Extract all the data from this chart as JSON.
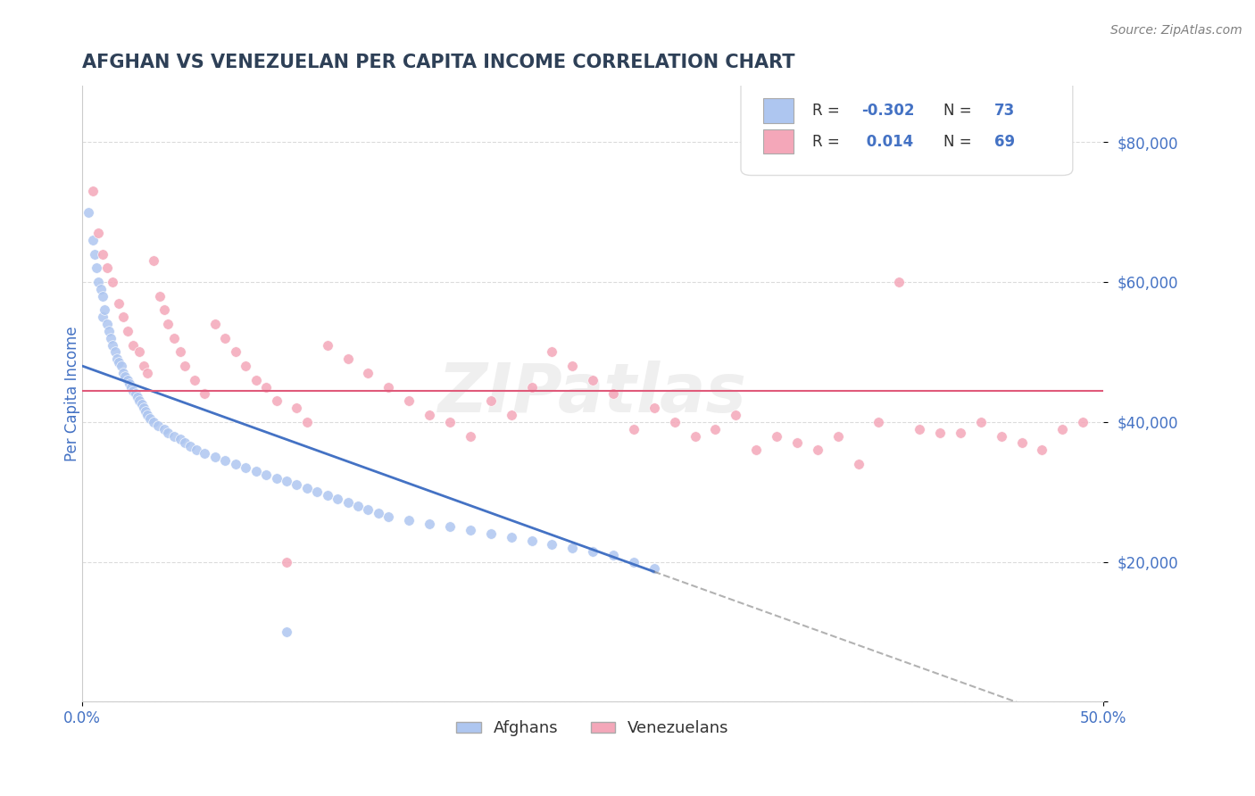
{
  "title": "AFGHAN VS VENEZUELAN PER CAPITA INCOME CORRELATION CHART",
  "source": "Source: ZipAtlas.com",
  "ylabel": "Per Capita Income",
  "xlim": [
    0.0,
    50.0
  ],
  "ylim": [
    0,
    88000
  ],
  "afghan_R": -0.302,
  "afghan_N": 73,
  "venezuelan_R": 0.014,
  "venezuelan_N": 69,
  "afghan_color": "#aec6f0",
  "afghan_line_color": "#4472c4",
  "venezuelan_color": "#f4a7b9",
  "venezuelan_line_color": "#e05a7a",
  "title_color": "#2e4057",
  "tick_color": "#4472c4",
  "legend_r_color": "#4472c4",
  "watermark": "ZIPatlas",
  "background_color": "#ffffff",
  "grid_color": "#cccccc",
  "afghan_slope": -1050,
  "afghan_intercept": 48000,
  "afghan_line_xend": 28.0,
  "venezuelan_intercept": 44500,
  "afghan_x": [
    0.3,
    0.5,
    0.6,
    0.7,
    0.8,
    0.9,
    1.0,
    1.0,
    1.1,
    1.2,
    1.3,
    1.4,
    1.5,
    1.6,
    1.7,
    1.8,
    1.9,
    2.0,
    2.1,
    2.2,
    2.3,
    2.4,
    2.5,
    2.6,
    2.7,
    2.8,
    2.9,
    3.0,
    3.1,
    3.2,
    3.3,
    3.5,
    3.7,
    4.0,
    4.2,
    4.5,
    4.8,
    5.0,
    5.3,
    5.6,
    6.0,
    6.5,
    7.0,
    7.5,
    8.0,
    8.5,
    9.0,
    9.5,
    10.0,
    10.5,
    11.0,
    11.5,
    12.0,
    12.5,
    13.0,
    13.5,
    14.0,
    14.5,
    15.0,
    16.0,
    17.0,
    18.0,
    19.0,
    20.0,
    21.0,
    22.0,
    23.0,
    24.0,
    25.0,
    26.0,
    27.0,
    28.0,
    10.0
  ],
  "afghan_y": [
    70000,
    66000,
    64000,
    62000,
    60000,
    59000,
    58000,
    55000,
    56000,
    54000,
    53000,
    52000,
    51000,
    50000,
    49000,
    48500,
    48000,
    47000,
    46500,
    46000,
    45500,
    45000,
    44500,
    44000,
    43500,
    43000,
    42500,
    42000,
    41500,
    41000,
    40500,
    40000,
    39500,
    39000,
    38500,
    38000,
    37500,
    37000,
    36500,
    36000,
    35500,
    35000,
    34500,
    34000,
    33500,
    33000,
    32500,
    32000,
    31500,
    31000,
    30500,
    30000,
    29500,
    29000,
    28500,
    28000,
    27500,
    27000,
    26500,
    26000,
    25500,
    25000,
    24500,
    24000,
    23500,
    23000,
    22500,
    22000,
    21500,
    21000,
    20000,
    19000,
    10000
  ],
  "venezuelan_x": [
    0.5,
    0.8,
    1.0,
    1.2,
    1.5,
    1.8,
    2.0,
    2.2,
    2.5,
    2.8,
    3.0,
    3.2,
    3.5,
    3.8,
    4.0,
    4.2,
    4.5,
    4.8,
    5.0,
    5.5,
    6.0,
    6.5,
    7.0,
    7.5,
    8.0,
    8.5,
    9.0,
    9.5,
    10.0,
    10.5,
    11.0,
    12.0,
    13.0,
    14.0,
    15.0,
    16.0,
    17.0,
    18.0,
    19.0,
    20.0,
    21.0,
    22.0,
    23.0,
    24.0,
    25.0,
    26.0,
    27.0,
    28.0,
    30.0,
    32.0,
    34.0,
    36.0,
    38.0,
    40.0,
    42.0,
    44.0,
    46.0,
    47.0,
    48.0,
    49.0,
    45.0,
    43.0,
    41.0,
    39.0,
    37.0,
    35.0,
    33.0,
    31.0,
    29.0
  ],
  "venezuelan_y": [
    73000,
    67000,
    64000,
    62000,
    60000,
    57000,
    55000,
    53000,
    51000,
    50000,
    48000,
    47000,
    63000,
    58000,
    56000,
    54000,
    52000,
    50000,
    48000,
    46000,
    44000,
    54000,
    52000,
    50000,
    48000,
    46000,
    45000,
    43000,
    20000,
    42000,
    40000,
    51000,
    49000,
    47000,
    45000,
    43000,
    41000,
    40000,
    38000,
    43000,
    41000,
    45000,
    50000,
    48000,
    46000,
    44000,
    39000,
    42000,
    38000,
    41000,
    38000,
    36000,
    34000,
    60000,
    38500,
    40000,
    37000,
    36000,
    39000,
    40000,
    38000,
    38500,
    39000,
    40000,
    38000,
    37000,
    36000,
    39000,
    40000
  ]
}
